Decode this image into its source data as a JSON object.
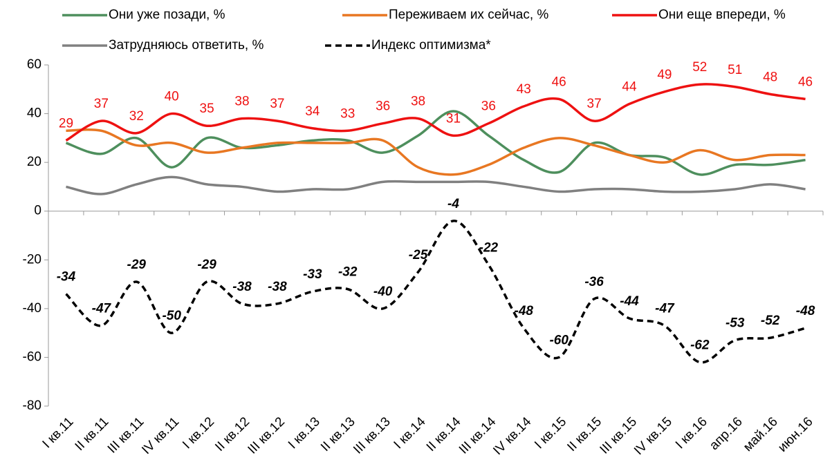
{
  "chart_data": {
    "type": "line",
    "categories": [
      "I кв.11",
      "II кв.11",
      "III кв.11",
      "IV кв.11",
      "I кв.12",
      "II кв.12",
      "III кв.12",
      "I кв.13",
      "II кв.13",
      "III кв.13",
      "I кв.14",
      "II кв.14",
      "III кв.14",
      "IV кв.14",
      "I кв.15",
      "II кв.15",
      "III кв.15",
      "IV кв.15",
      "I кв.16",
      "апр.16",
      "май.16",
      "июн.16"
    ],
    "series": [
      {
        "name": "Они уже позади, %",
        "color": "#4e8f5d",
        "dashed": false,
        "data_labels": false,
        "values": [
          28,
          23.5,
          30,
          18,
          30,
          26,
          27,
          29,
          29,
          24,
          31,
          41,
          31,
          21,
          16,
          28,
          23,
          22,
          15,
          19,
          19,
          21
        ]
      },
      {
        "name": "Переживаем их сейчас, %",
        "color": "#e87722",
        "dashed": false,
        "data_labels": false,
        "values": [
          33,
          33,
          27,
          28,
          24,
          26,
          28,
          28,
          28,
          29,
          18,
          15,
          19,
          26,
          30,
          27,
          23,
          20,
          25,
          21,
          23,
          23
        ]
      },
      {
        "name": "Они еще впереди, %",
        "color": "#ee1111",
        "dashed": false,
        "data_labels": true,
        "values": [
          29,
          37,
          32,
          40,
          35,
          38,
          37,
          34,
          33,
          36,
          38,
          31,
          36,
          43,
          46,
          37,
          44,
          49,
          52,
          51,
          48,
          46
        ]
      },
      {
        "name": "Затрудняюсь ответить, %",
        "color": "#808080",
        "dashed": false,
        "data_labels": false,
        "values": [
          10,
          7,
          11,
          14,
          11,
          10,
          8,
          9,
          9,
          12,
          12,
          12,
          12,
          10,
          8,
          9,
          9,
          8,
          8,
          9,
          11,
          9
        ]
      },
      {
        "name": "Индекс оптимизма*",
        "color": "#000000",
        "dashed": true,
        "data_labels": true,
        "values": [
          -34,
          -47,
          -29,
          -50,
          -29,
          -38,
          -38,
          -33,
          -32,
          -40,
          -25,
          -4,
          -22,
          -48,
          -60,
          -36,
          -44,
          -47,
          -62,
          -53,
          -52,
          -48
        ]
      }
    ],
    "ylim": [
      -80,
      60
    ],
    "yticks": [
      -80,
      -60,
      -40,
      -20,
      0,
      20,
      40,
      60
    ],
    "grid": false
  }
}
